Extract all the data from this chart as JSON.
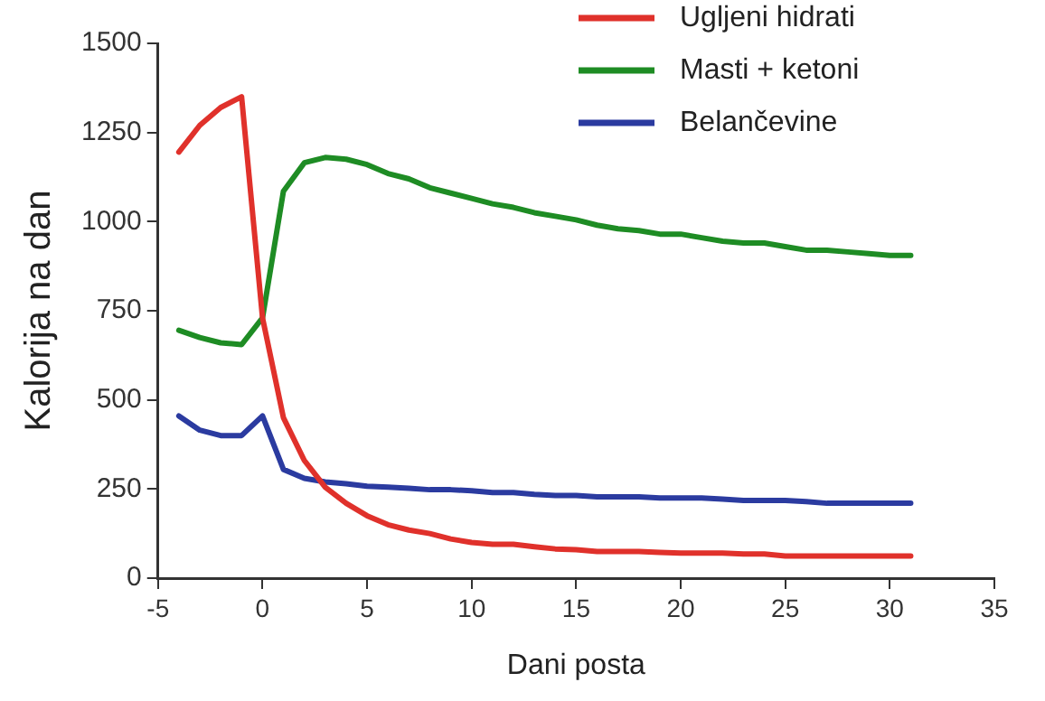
{
  "chart_data": {
    "type": "line",
    "xlabel": "Dani posta",
    "ylabel": "Kalorija na dan",
    "x": [
      -4,
      -3,
      -2,
      -1,
      0,
      1,
      2,
      3,
      4,
      5,
      6,
      7,
      8,
      9,
      10,
      11,
      12,
      13,
      14,
      15,
      16,
      17,
      18,
      19,
      20,
      21,
      22,
      23,
      24,
      25,
      26,
      27,
      28,
      29,
      30,
      31
    ],
    "series": [
      {
        "name": "Ugljeni hidrati",
        "color": "#e0312b",
        "values": [
          1195,
          1270,
          1320,
          1350,
          730,
          450,
          330,
          255,
          210,
          175,
          150,
          135,
          125,
          110,
          100,
          95,
          95,
          88,
          82,
          80,
          75,
          75,
          75,
          72,
          70,
          70,
          70,
          68,
          68,
          62,
          62,
          62,
          62,
          62,
          62,
          62
        ]
      },
      {
        "name": "Masti + ketoni",
        "color": "#1e8c24",
        "values": [
          695,
          675,
          660,
          655,
          730,
          1085,
          1165,
          1180,
          1175,
          1160,
          1135,
          1120,
          1095,
          1080,
          1065,
          1050,
          1040,
          1025,
          1015,
          1005,
          990,
          980,
          975,
          965,
          965,
          955,
          945,
          940,
          940,
          930,
          920,
          920,
          915,
          910,
          905,
          905
        ]
      },
      {
        "name": "Belančevine",
        "color": "#2b3ba0",
        "values": [
          455,
          415,
          400,
          400,
          455,
          305,
          280,
          270,
          265,
          258,
          255,
          252,
          248,
          248,
          245,
          240,
          240,
          235,
          232,
          232,
          228,
          228,
          228,
          225,
          225,
          225,
          222,
          218,
          218,
          218,
          215,
          210,
          210,
          210,
          210,
          210
        ]
      }
    ],
    "xlim": [
      -5,
      35
    ],
    "xticks": [
      -5,
      0,
      5,
      10,
      15,
      20,
      25,
      30,
      35
    ],
    "ylim": [
      0,
      1500
    ],
    "yticks": [
      0,
      250,
      500,
      750,
      1000,
      1250,
      1500
    ],
    "grid": false,
    "legend": "top right",
    "marker": "none",
    "line_style": "solid"
  }
}
